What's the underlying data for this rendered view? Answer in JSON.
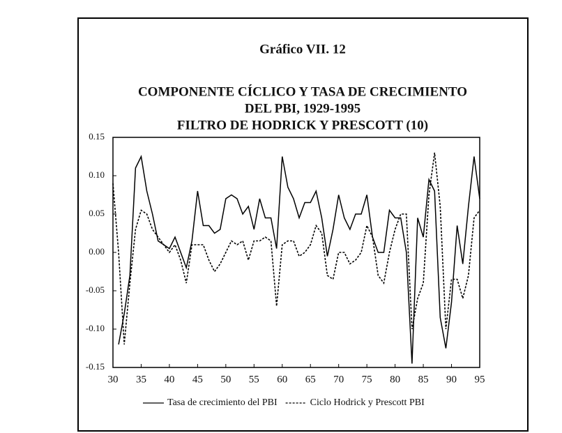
{
  "chart_data": {
    "type": "line",
    "title": "Gráfico VII. 12",
    "subtitle": [
      "COMPONENTE CÍCLICO Y TASA DE CRECIMIENTO",
      "DEL PBI, 1929-1995",
      "FILTRO DE HODRICK Y PRESCOTT (10)"
    ],
    "x": [
      30,
      31,
      32,
      33,
      34,
      35,
      36,
      37,
      38,
      39,
      40,
      41,
      42,
      43,
      44,
      45,
      46,
      47,
      48,
      49,
      50,
      51,
      52,
      53,
      54,
      55,
      56,
      57,
      58,
      59,
      60,
      61,
      62,
      63,
      64,
      65,
      66,
      67,
      68,
      69,
      70,
      71,
      72,
      73,
      74,
      75,
      76,
      77,
      78,
      79,
      80,
      81,
      82,
      83,
      84,
      85,
      86,
      87,
      88,
      89,
      90,
      91,
      92,
      93,
      94,
      95
    ],
    "series": [
      {
        "name": "Tasa de crecimiento del PBI",
        "color": "#000000",
        "style": "solid",
        "values": [
          null,
          -0.12,
          -0.08,
          -0.03,
          0.11,
          0.125,
          0.08,
          0.05,
          0.015,
          0.01,
          0.005,
          0.02,
          0.0,
          -0.02,
          0.015,
          0.08,
          0.035,
          0.035,
          0.025,
          0.03,
          0.07,
          0.075,
          0.07,
          0.05,
          0.06,
          0.03,
          0.07,
          0.045,
          0.045,
          0.005,
          0.125,
          0.085,
          0.07,
          0.045,
          0.065,
          0.065,
          0.08,
          0.045,
          -0.005,
          0.03,
          0.075,
          0.045,
          0.03,
          0.05,
          0.05,
          0.075,
          0.02,
          0.0,
          0.0,
          0.055,
          0.045,
          0.045,
          0.0,
          -0.145,
          0.045,
          0.02,
          0.095,
          0.08,
          -0.085,
          -0.125,
          -0.065,
          0.035,
          -0.015,
          0.06,
          0.125,
          0.07
        ]
      },
      {
        "name": "Ciclo Hodrick y Prescott PBI",
        "color": "#000000",
        "style": "dotted",
        "values": [
          0.09,
          0.0,
          -0.12,
          -0.04,
          0.03,
          0.055,
          0.05,
          0.03,
          0.02,
          0.01,
          0.0,
          0.01,
          -0.01,
          -0.04,
          0.01,
          0.01,
          0.01,
          -0.01,
          -0.025,
          -0.015,
          0.0,
          0.015,
          0.01,
          0.015,
          -0.01,
          0.015,
          0.015,
          0.02,
          0.015,
          -0.07,
          0.01,
          0.015,
          0.015,
          -0.005,
          0.0,
          0.01,
          0.035,
          0.025,
          -0.03,
          -0.035,
          0.0,
          0.0,
          -0.015,
          -0.01,
          0.0,
          0.035,
          0.02,
          -0.03,
          -0.04,
          0.0,
          0.03,
          0.05,
          0.05,
          -0.1,
          -0.06,
          -0.04,
          0.075,
          0.13,
          0.06,
          -0.1,
          -0.035,
          -0.035,
          -0.06,
          -0.03,
          0.045,
          0.055
        ]
      }
    ],
    "xlim": [
      30,
      95
    ],
    "xticks": [
      30,
      35,
      40,
      45,
      50,
      55,
      60,
      65,
      70,
      75,
      80,
      85,
      90,
      95
    ],
    "ylim": [
      -0.15,
      0.15
    ],
    "yticks": [
      0.15,
      {
        "value": 0.1,
        "label": "0.10"
      },
      0.05,
      {
        "value": 0,
        "label": "0.00"
      },
      -0.05,
      {
        "value": -0.1,
        "label": "-0.10"
      },
      -0.15
    ],
    "legend": "bottom"
  }
}
